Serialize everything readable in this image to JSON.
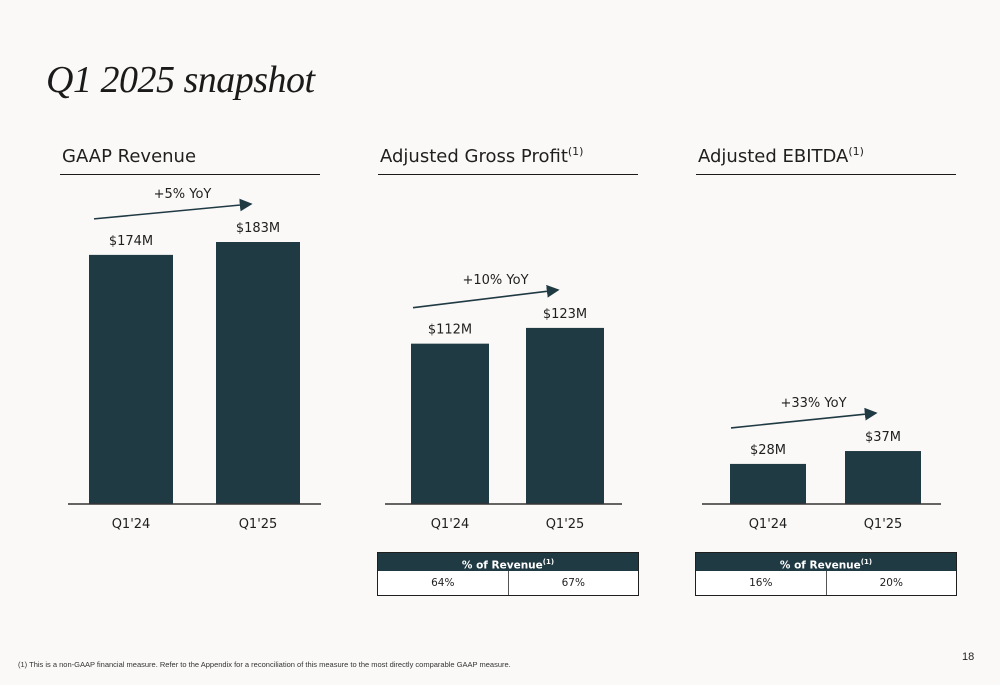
{
  "page": {
    "title": "Q1 2025 snapshot",
    "footnote": "(1) This is a non-GAAP financial measure.  Refer to the Appendix for a reconciliation of this measure to the most directly comparable GAAP measure.",
    "page_number": "18",
    "footnote_marker": "(1)"
  },
  "tables": [
    {
      "header": "% of Revenue",
      "marker": "(1)",
      "values": [
        "64%",
        "67%"
      ]
    },
    {
      "header": "% of Revenue",
      "marker": "(1)",
      "values": [
        "16%",
        "20%"
      ]
    }
  ],
  "colors": {
    "bar": "#203a44",
    "background": "#faf9f7"
  },
  "chart_data": [
    {
      "type": "bar",
      "title": "GAAP Revenue",
      "title_marker": "",
      "categories": [
        "Q1'24",
        "Q1'25"
      ],
      "values": [
        174,
        183
      ],
      "data_labels": [
        "$174M",
        "$183M"
      ],
      "annotation": "+5% YoY",
      "ylim": [
        0,
        200
      ]
    },
    {
      "type": "bar",
      "title": "Adjusted Gross Profit",
      "title_marker": "(1)",
      "categories": [
        "Q1'24",
        "Q1'25"
      ],
      "values": [
        112,
        123
      ],
      "data_labels": [
        "$112M",
        "$123M"
      ],
      "annotation": "+10% YoY",
      "ylim": [
        0,
        200
      ]
    },
    {
      "type": "bar",
      "title": "Adjusted EBITDA",
      "title_marker": "(1)",
      "categories": [
        "Q1'24",
        "Q1'25"
      ],
      "values": [
        28,
        37
      ],
      "data_labels": [
        "$28M",
        "$37M"
      ],
      "annotation": "+33% YoY",
      "ylim": [
        0,
        200
      ]
    }
  ]
}
